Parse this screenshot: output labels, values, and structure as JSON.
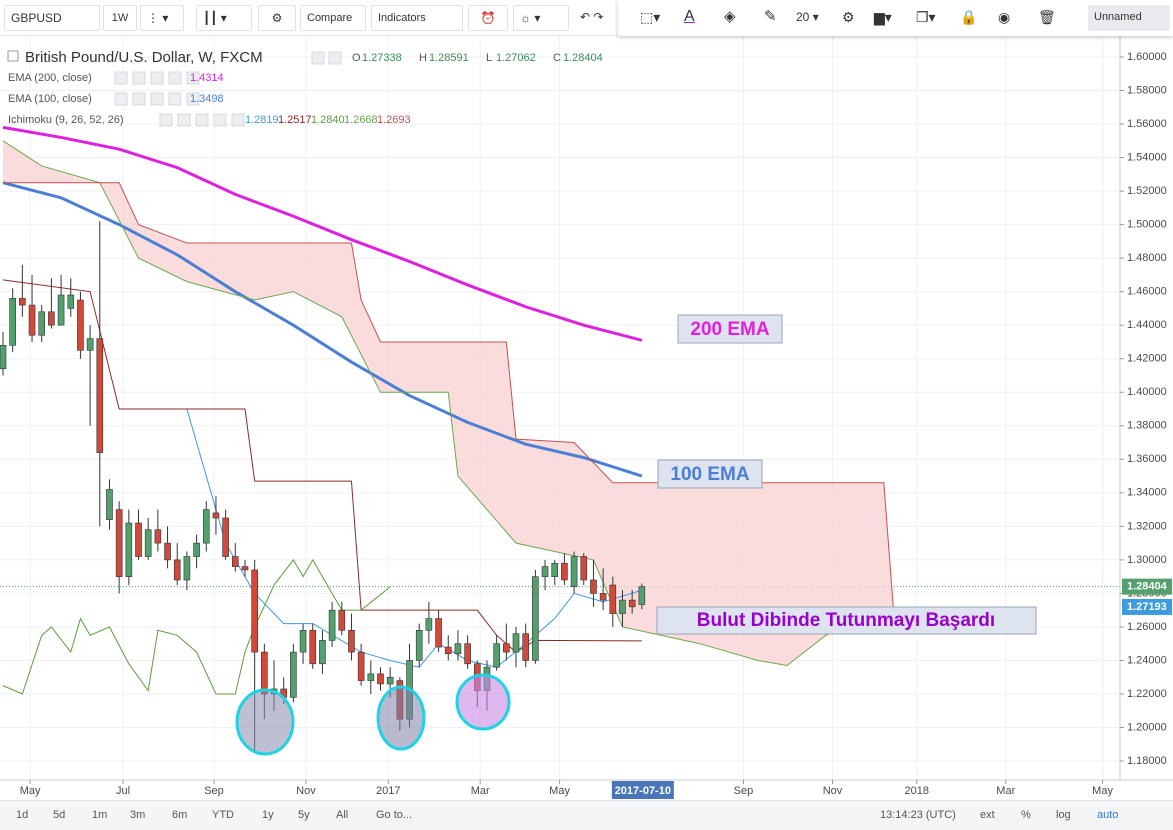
{
  "toolbar": {
    "symbol": "GBPUSD",
    "interval": "1W",
    "compare": "Compare",
    "indicators": "Indicators",
    "font_size": "20",
    "layout_name": "Unnamed"
  },
  "chart_data": {
    "type": "candlestick",
    "title": "British Pound/U.S. Dollar, W, FXCM",
    "ohlc": [
      {
        "label": "O",
        "value": 1.27338
      },
      {
        "label": "H",
        "value": 1.28591
      },
      {
        "label": "L",
        "value": 1.27062
      },
      {
        "label": "C",
        "value": 1.28404
      }
    ],
    "up_color": "#53a06e",
    "down_color": "#d0493b",
    "open": [
      1.414,
      1.428,
      1.456,
      1.452,
      1.434,
      1.448,
      1.44,
      1.45,
      1.455,
      1.425,
      1.432,
      1.324,
      1.33,
      1.29,
      1.322,
      1.302,
      1.318,
      1.31,
      1.3,
      1.288,
      1.302,
      1.31,
      1.328,
      1.325,
      1.302,
      1.296,
      1.294,
      1.245,
      1.22,
      1.223,
      1.218,
      1.245,
      1.258,
      1.238,
      1.252,
      1.27,
      1.258,
      1.245,
      1.228,
      1.232,
      1.226,
      1.228,
      1.205,
      1.24,
      1.258,
      1.265,
      1.248,
      1.244,
      1.25,
      1.238,
      1.222,
      1.236,
      1.25,
      1.245,
      1.256,
      1.24,
      1.29,
      1.29,
      1.298,
      1.284,
      1.302,
      1.288,
      1.28,
      1.285,
      1.268,
      1.276,
      1.27338
    ],
    "high": [
      1.436,
      1.462,
      1.476,
      1.47,
      1.452,
      1.468,
      1.47,
      1.468,
      1.46,
      1.44,
      1.502,
      1.348,
      1.335,
      1.33,
      1.33,
      1.325,
      1.33,
      1.32,
      1.31,
      1.305,
      1.315,
      1.335,
      1.338,
      1.33,
      1.31,
      1.3,
      1.3,
      1.25,
      1.24,
      1.23,
      1.25,
      1.262,
      1.262,
      1.258,
      1.275,
      1.275,
      1.268,
      1.25,
      1.24,
      1.236,
      1.236,
      1.23,
      1.25,
      1.262,
      1.275,
      1.27,
      1.255,
      1.258,
      1.255,
      1.24,
      1.24,
      1.255,
      1.262,
      1.26,
      1.262,
      1.294,
      1.3,
      1.3,
      1.304,
      1.305,
      1.304,
      1.3,
      1.295,
      1.29,
      1.282,
      1.282,
      1.28591
    ],
    "low": [
      1.41,
      1.424,
      1.445,
      1.43,
      1.43,
      1.438,
      1.44,
      1.445,
      1.42,
      1.38,
      1.32,
      1.318,
      1.28,
      1.285,
      1.3,
      1.3,
      1.305,
      1.295,
      1.285,
      1.282,
      1.295,
      1.305,
      1.315,
      1.3,
      1.293,
      1.29,
      1.185,
      1.205,
      1.21,
      1.214,
      1.215,
      1.238,
      1.235,
      1.232,
      1.248,
      1.255,
      1.24,
      1.225,
      1.22,
      1.222,
      1.218,
      1.198,
      1.2,
      1.236,
      1.25,
      1.245,
      1.24,
      1.24,
      1.235,
      1.212,
      1.21,
      1.234,
      1.24,
      1.236,
      1.236,
      1.238,
      1.282,
      1.285,
      1.285,
      1.28,
      1.285,
      1.272,
      1.27,
      1.26,
      1.26,
      1.268,
      1.27062
    ],
    "close": [
      1.428,
      1.456,
      1.452,
      1.434,
      1.448,
      1.44,
      1.458,
      1.458,
      1.425,
      1.432,
      1.364,
      1.342,
      1.29,
      1.322,
      1.302,
      1.318,
      1.31,
      1.3,
      1.288,
      1.302,
      1.31,
      1.33,
      1.325,
      1.302,
      1.296,
      1.294,
      1.245,
      1.22,
      1.223,
      1.218,
      1.245,
      1.258,
      1.238,
      1.252,
      1.27,
      1.258,
      1.245,
      1.228,
      1.232,
      1.226,
      1.23,
      1.205,
      1.24,
      1.258,
      1.265,
      1.248,
      1.244,
      1.25,
      1.238,
      1.222,
      1.236,
      1.25,
      1.245,
      1.256,
      1.24,
      1.29,
      1.296,
      1.298,
      1.288,
      1.302,
      1.288,
      1.28,
      1.276,
      1.268,
      1.276,
      1.272,
      1.28404
    ],
    "indicators": [
      {
        "name": "EMA (200, close)",
        "values_shown": [
          1.4314
        ],
        "lines": [
          {
            "color": "#e020e0",
            "width": 3,
            "x": [
              0,
              6,
              12,
              18,
              24,
              30,
              36,
              42,
              48,
              54,
              60,
              66
            ],
            "values": [
              1.558,
              1.552,
              1.545,
              1.534,
              1.518,
              1.505,
              1.491,
              1.478,
              1.464,
              1.451,
              1.44,
              1.431
            ]
          }
        ]
      },
      {
        "name": "EMA (100, close)",
        "values_shown": [
          1.3498
        ],
        "lines": [
          {
            "color": "#4a7fd4",
            "width": 3,
            "x": [
              0,
              6,
              12,
              18,
              24,
              30,
              36,
              42,
              48,
              54,
              60,
              66
            ],
            "values": [
              1.525,
              1.516,
              1.5,
              1.482,
              1.46,
              1.44,
              1.418,
              1.398,
              1.382,
              1.369,
              1.361,
              1.35
            ]
          }
        ]
      },
      {
        "name": "Ichimoku (9, 26, 52, 26)",
        "values_shown": [
          1.2819,
          1.2517,
          {
            "value": 1.284,
            "label": "1.2840"
          },
          1.2668,
          1.2693
        ],
        "cloud_fill": "#f9d0d0",
        "lines": [
          {
            "color": "#3d9be0",
            "width": 1,
            "x": [
              19,
              23,
              26,
              29,
              32,
              37,
              40,
              43,
              45,
              48,
              51,
              54,
              57,
              59,
              62,
              66
            ],
            "values": [
              1.39,
              1.31,
              1.28,
              1.262,
              1.262,
              1.245,
              1.24,
              1.236,
              1.25,
              1.24,
              1.236,
              1.25,
              1.265,
              1.28,
              1.275,
              1.2819
            ]
          },
          {
            "color": "#8b2a2a",
            "width": 1,
            "x": [
              0,
              9,
              12,
              25,
              26,
              36,
              37,
              49,
              51,
              53,
              55,
              66
            ],
            "values": [
              1.467,
              1.46,
              1.39,
              1.39,
              1.347,
              1.347,
              1.27,
              1.27,
              1.255,
              1.245,
              1.252,
              1.2517
            ]
          },
          {
            "color": "#5c9c3c",
            "width": 1,
            "x": [
              0,
              2,
              4,
              5,
              7,
              8,
              9,
              11,
              13,
              15,
              16,
              18,
              20,
              22,
              24,
              25,
              26,
              28,
              30,
              31,
              32,
              34,
              35,
              37,
              40
            ],
            "values": [
              1.225,
              1.22,
              1.255,
              1.26,
              1.245,
              1.265,
              1.255,
              1.26,
              1.238,
              1.222,
              1.258,
              1.255,
              1.245,
              1.22,
              1.22,
              1.245,
              1.26,
              1.285,
              1.3,
              1.29,
              1.3,
              1.28,
              1.27,
              1.27,
              1.284
            ]
          },
          {
            "color": "#6aa84f",
            "width": 1,
            "x": [
              0,
              4,
              10,
              14,
              19,
              26,
              30,
              35,
              39,
              46,
              47,
              53,
              61,
              64,
              72,
              78,
              81,
              85,
              92
            ],
            "values": [
              1.55,
              1.535,
              1.525,
              1.48,
              1.466,
              1.455,
              1.46,
              1.445,
              1.4,
              1.4,
              1.35,
              1.31,
              1.3,
              1.26,
              1.25,
              1.24,
              1.237,
              1.255,
              1.27
            ]
          },
          {
            "color": "#c45050",
            "width": 1,
            "x": [
              0,
              12,
              14,
              19,
              36,
              37,
              39,
              52,
              53,
              59,
              63,
              91,
              92
            ],
            "values": [
              1.525,
              1.525,
              1.5,
              1.489,
              1.489,
              1.455,
              1.43,
              1.43,
              1.372,
              1.37,
              1.346,
              1.346,
              1.27
            ]
          }
        ]
      }
    ],
    "annotations": [
      {
        "text": "200 EMA"
      },
      {
        "text": "100 EMA"
      },
      {
        "text": "Bulut Dibinde Tutunmayı Başardı"
      }
    ],
    "price_labels": [
      {
        "value": 1.28404,
        "label": "1.28404",
        "color": "#53a06e"
      },
      {
        "value": 1.27193,
        "label": "1.27193",
        "color": "#3d9be0"
      }
    ],
    "cursor_date": {
      "value": 66,
      "label": "2017-07-10"
    },
    "xlim": [
      -0.31,
      115.4
    ],
    "xticks": [
      {
        "value": 2.8,
        "label": "May"
      },
      {
        "value": 12.4,
        "label": "Jul"
      },
      {
        "value": 21.8,
        "label": "Sep"
      },
      {
        "value": 31.3,
        "label": "Nov"
      },
      {
        "value": 39.8,
        "label": "2017"
      },
      {
        "value": 49.3,
        "label": "Mar"
      },
      {
        "value": 57.5,
        "label": "May"
      },
      {
        "value": 76.5,
        "label": "Sep"
      },
      {
        "value": 85.7,
        "label": "Nov"
      },
      {
        "value": 94.4,
        "label": "2018"
      },
      {
        "value": 103.6,
        "label": "Mar"
      },
      {
        "value": 113.6,
        "label": "May"
      }
    ],
    "ylim": [
      1.1687,
      1.6125
    ],
    "yticks": [
      {
        "value": 1.6,
        "label": "1.60000"
      },
      {
        "value": 1.58,
        "label": "1.58000"
      },
      {
        "value": 1.56,
        "label": "1.56000"
      },
      {
        "value": 1.54,
        "label": "1.54000"
      },
      {
        "value": 1.52,
        "label": "1.52000"
      },
      {
        "value": 1.5,
        "label": "1.50000"
      },
      {
        "value": 1.48,
        "label": "1.48000"
      },
      {
        "value": 1.46,
        "label": "1.46000"
      },
      {
        "value": 1.44,
        "label": "1.44000"
      },
      {
        "value": 1.42,
        "label": "1.42000"
      },
      {
        "value": 1.4,
        "label": "1.40000"
      },
      {
        "value": 1.38,
        "label": "1.38000"
      },
      {
        "value": 1.36,
        "label": "1.36000"
      },
      {
        "value": 1.34,
        "label": "1.34000"
      },
      {
        "value": 1.32,
        "label": "1.32000"
      },
      {
        "value": 1.3,
        "label": "1.30000"
      },
      {
        "value": 1.28,
        "label": "1.28000"
      },
      {
        "value": 1.26,
        "label": "1.26000"
      },
      {
        "value": 1.24,
        "label": "1.24000"
      },
      {
        "value": 1.22,
        "label": "1.22000"
      },
      {
        "value": 1.2,
        "label": "1.20000"
      },
      {
        "value": 1.18,
        "label": "1.18000"
      }
    ],
    "grid": true
  },
  "bottom_bar": {
    "ranges": [
      "1d",
      "5d",
      "1m",
      "3m",
      "6m",
      "YTD",
      "1y",
      "5y",
      "All"
    ],
    "goto": "Go to...",
    "clock": "13:14:23 (UTC)",
    "options": [
      "ext",
      "%",
      "log",
      "auto"
    ]
  }
}
